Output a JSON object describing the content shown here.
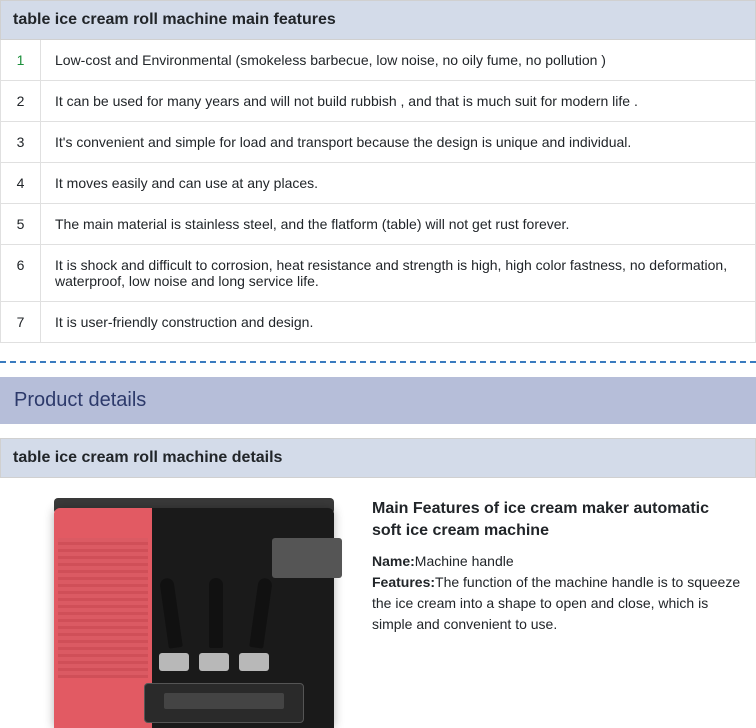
{
  "features": {
    "header": "table ice cream roll machine main features",
    "header_bg": "#d3dbe9",
    "row_border": "#e0e0e0",
    "first_num_color": "#1a8f3a",
    "rows": [
      {
        "num": "1",
        "text": "Low-cost and Environmental (smokeless barbecue, low noise, no oily fume, no pollution )"
      },
      {
        "num": "2",
        "text": "It can be used for many years and will not build rubbish , and that is much suit for modern life ."
      },
      {
        "num": "3",
        "text": "It's convenient and simple for load and transport because the design is unique and individual."
      },
      {
        "num": "4",
        "text": "It moves easily and can use at any places."
      },
      {
        "num": "5",
        "text": "The main material is stainless steel, and the flatform (table) will not get rust forever."
      },
      {
        "num": "6",
        "text": "It is shock and difficult to corrosion, heat resistance and strength is high, high color fastness, no deformation, waterproof, low noise and long service life."
      },
      {
        "num": "7",
        "text": "It is user-friendly construction and design."
      }
    ]
  },
  "separator_color": "#3a7bbf",
  "product_details": {
    "section_title": "Product details",
    "section_bg": "#b6bed9",
    "section_color": "#2d3a6b",
    "header": "table ice cream roll machine details",
    "main_title": "Main Features of ice cream maker automatic soft ice cream machine",
    "name_label": "Name:",
    "name_value": "Machine handle",
    "features_label": "Features:",
    "features_value": "The function of the machine handle is to squeeze the ice cream into a shape to open and close, which is simple and convenient to use.",
    "image": {
      "body_left_color": "#e25a63",
      "body_right_color": "#1a1a1a",
      "top_color": "#3a3a3a",
      "panel_color": "#555555",
      "handle_color": "#111111",
      "nozzle_color": "#b8b8b8",
      "tray_color": "#2a2a2a"
    }
  }
}
